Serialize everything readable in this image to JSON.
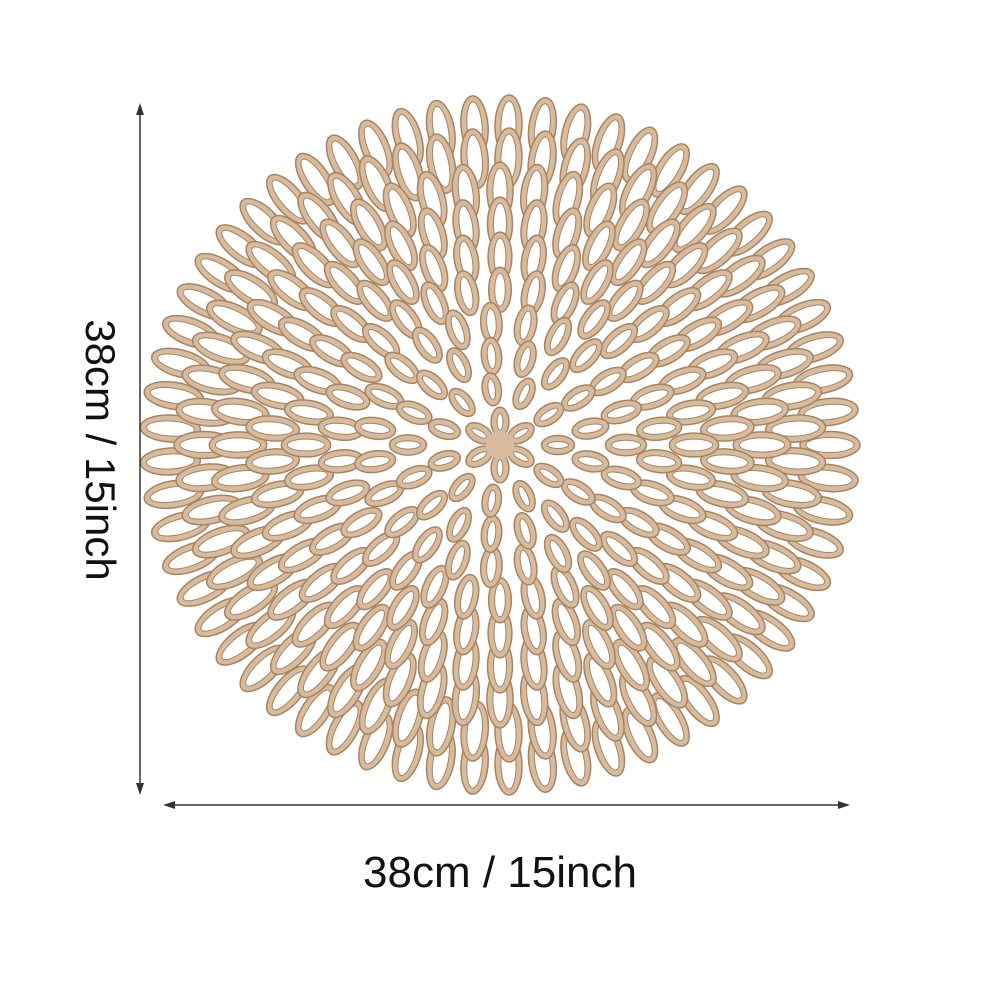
{
  "product": {
    "name": "placemat",
    "color": "#d6bb9f",
    "outline_color": "#a9835f"
  },
  "dimensions": {
    "height_label": "38cm / 15inch",
    "width_label": "38cm / 15inch"
  }
}
